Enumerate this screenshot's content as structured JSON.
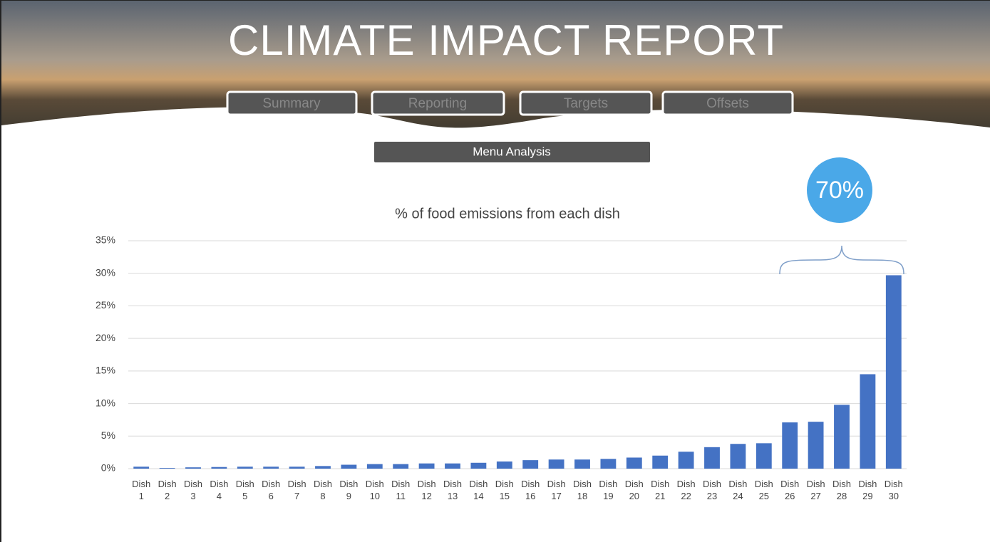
{
  "header": {
    "title": "CLIMATE IMPACT REPORT",
    "nav": [
      "Summary",
      "Reporting",
      "Targets",
      "Offsets"
    ],
    "section": "Menu Analysis"
  },
  "chart_data": {
    "type": "bar",
    "title": "% of food emissions from each dish",
    "annotation": "70%",
    "categories": [
      "Dish 1",
      "Dish 2",
      "Dish 3",
      "Dish 4",
      "Dish 5",
      "Dish 6",
      "Dish 7",
      "Dish 8",
      "Dish 9",
      "Dish 10",
      "Dish 11",
      "Dish 12",
      "Dish 13",
      "Dish 14",
      "Dish 15",
      "Dish 16",
      "Dish 17",
      "Dish 18",
      "Dish 19",
      "Dish 20",
      "Dish 21",
      "Dish 22",
      "Dish 23",
      "Dish 24",
      "Dish 25",
      "Dish 26",
      "Dish 27",
      "Dish 28",
      "Dish 29",
      "Dish 30"
    ],
    "values": [
      0.3,
      0.1,
      0.2,
      0.25,
      0.3,
      0.3,
      0.3,
      0.4,
      0.6,
      0.7,
      0.7,
      0.8,
      0.8,
      0.9,
      1.1,
      1.3,
      1.4,
      1.4,
      1.5,
      1.7,
      2.0,
      2.6,
      3.3,
      3.8,
      3.9,
      7.1,
      7.2,
      9.8,
      14.5,
      29.7
    ],
    "color": "#4472c4",
    "ylim": [
      0,
      35
    ],
    "yticks": [
      {
        "value": 0,
        "label": "0%"
      },
      {
        "value": 5,
        "label": "5%"
      },
      {
        "value": 10,
        "label": "10%"
      },
      {
        "value": 15,
        "label": "15%"
      },
      {
        "value": 20,
        "label": "20%"
      },
      {
        "value": 25,
        "label": "25%"
      },
      {
        "value": 30,
        "label": "30%"
      },
      {
        "value": 35,
        "label": "35%"
      }
    ],
    "grid": true
  }
}
